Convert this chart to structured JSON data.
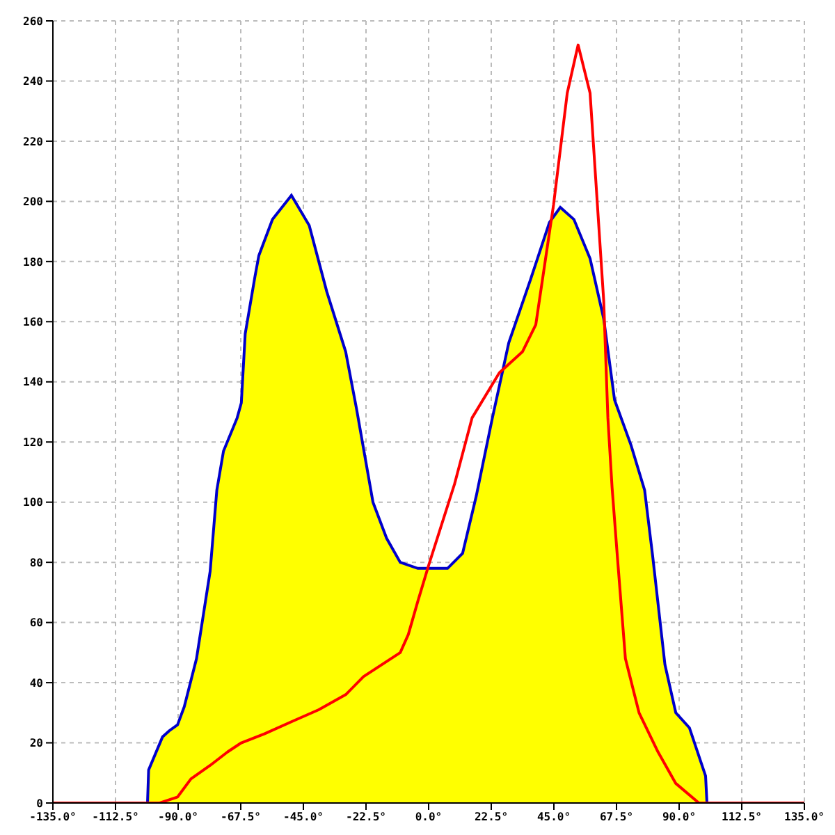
{
  "chart_data": {
    "type": "area",
    "xlim": [
      -135,
      135
    ],
    "ylim": [
      0,
      260
    ],
    "xticks": [
      {
        "value": -135,
        "label": "-135.0°"
      },
      {
        "value": -112.5,
        "label": "-112.5°"
      },
      {
        "value": -90,
        "label": "-90.0°"
      },
      {
        "value": -67.5,
        "label": "-67.5°"
      },
      {
        "value": -45,
        "label": "-45.0°"
      },
      {
        "value": -22.5,
        "label": "-22.5°"
      },
      {
        "value": 0,
        "label": "0.0°"
      },
      {
        "value": 22.5,
        "label": "22.5°"
      },
      {
        "value": 45,
        "label": "45.0°"
      },
      {
        "value": 67.5,
        "label": "67.5°"
      },
      {
        "value": 90,
        "label": "90.0°"
      },
      {
        "value": 112.5,
        "label": "112.5°"
      },
      {
        "value": 135,
        "label": "135.0°"
      }
    ],
    "yticks": [
      0,
      20,
      40,
      60,
      80,
      100,
      120,
      140,
      160,
      180,
      200,
      220,
      240,
      260
    ],
    "grid": true,
    "line_style": "solid",
    "marker": "none",
    "series": [
      {
        "color": "#ffff00",
        "x": [
          -101,
          -100.6,
          -95.6,
          -93.2,
          -90.2,
          -87.8,
          -83.4,
          -78.5,
          -76.1,
          -73.7,
          -68.8,
          -67.3,
          -65.9,
          -62.4,
          -61,
          -56.1,
          -49.3,
          -42.9,
          -36.6,
          -29.8,
          -25.9,
          -20,
          -15.1,
          -10.2,
          -3.9,
          6.8,
          12.2,
          17.1,
          22.9,
          28.8,
          36.6,
          43.4,
          47.3,
          52.2,
          58,
          62.9,
          66.8,
          72.7,
          77.6,
          80.5,
          84.9,
          88.8,
          93.7,
          99.5,
          100
        ],
        "values": [
          0,
          11,
          22,
          24,
          26,
          32,
          48,
          77,
          104,
          117,
          128,
          133,
          156,
          175,
          182,
          194,
          202,
          192,
          170,
          150,
          131,
          100,
          88,
          80,
          78,
          78,
          83,
          102,
          128,
          153,
          174,
          193,
          198,
          194,
          181,
          161,
          134,
          119,
          104,
          82,
          46,
          30,
          25,
          9,
          0
        ]
      },
      {
        "type": "line",
        "color": "#ff0000",
        "x": [
          -135,
          -101,
          -96.6,
          -90.2,
          -85.4,
          -78.5,
          -72.2,
          -67.3,
          -59,
          -49.3,
          -39.5,
          -29.8,
          -23.4,
          -10.2,
          -7.3,
          -3.9,
          0,
          9.3,
          15.6,
          25.4,
          33.7,
          38.5,
          44.9,
          49.8,
          53.7,
          58,
          62.9,
          64.4,
          65.9,
          67.8,
          70.7,
          75.6,
          82.4,
          88.8,
          97.1,
          135
        ],
        "values": [
          0,
          0,
          0,
          2,
          8,
          12.5,
          17,
          20,
          23,
          27,
          31,
          36,
          42,
          50,
          56,
          67,
          79,
          106,
          128,
          143,
          150,
          159,
          199,
          236,
          252,
          236,
          167,
          128,
          105,
          82,
          48,
          30,
          17,
          6.5,
          0,
          0
        ]
      }
    ]
  }
}
